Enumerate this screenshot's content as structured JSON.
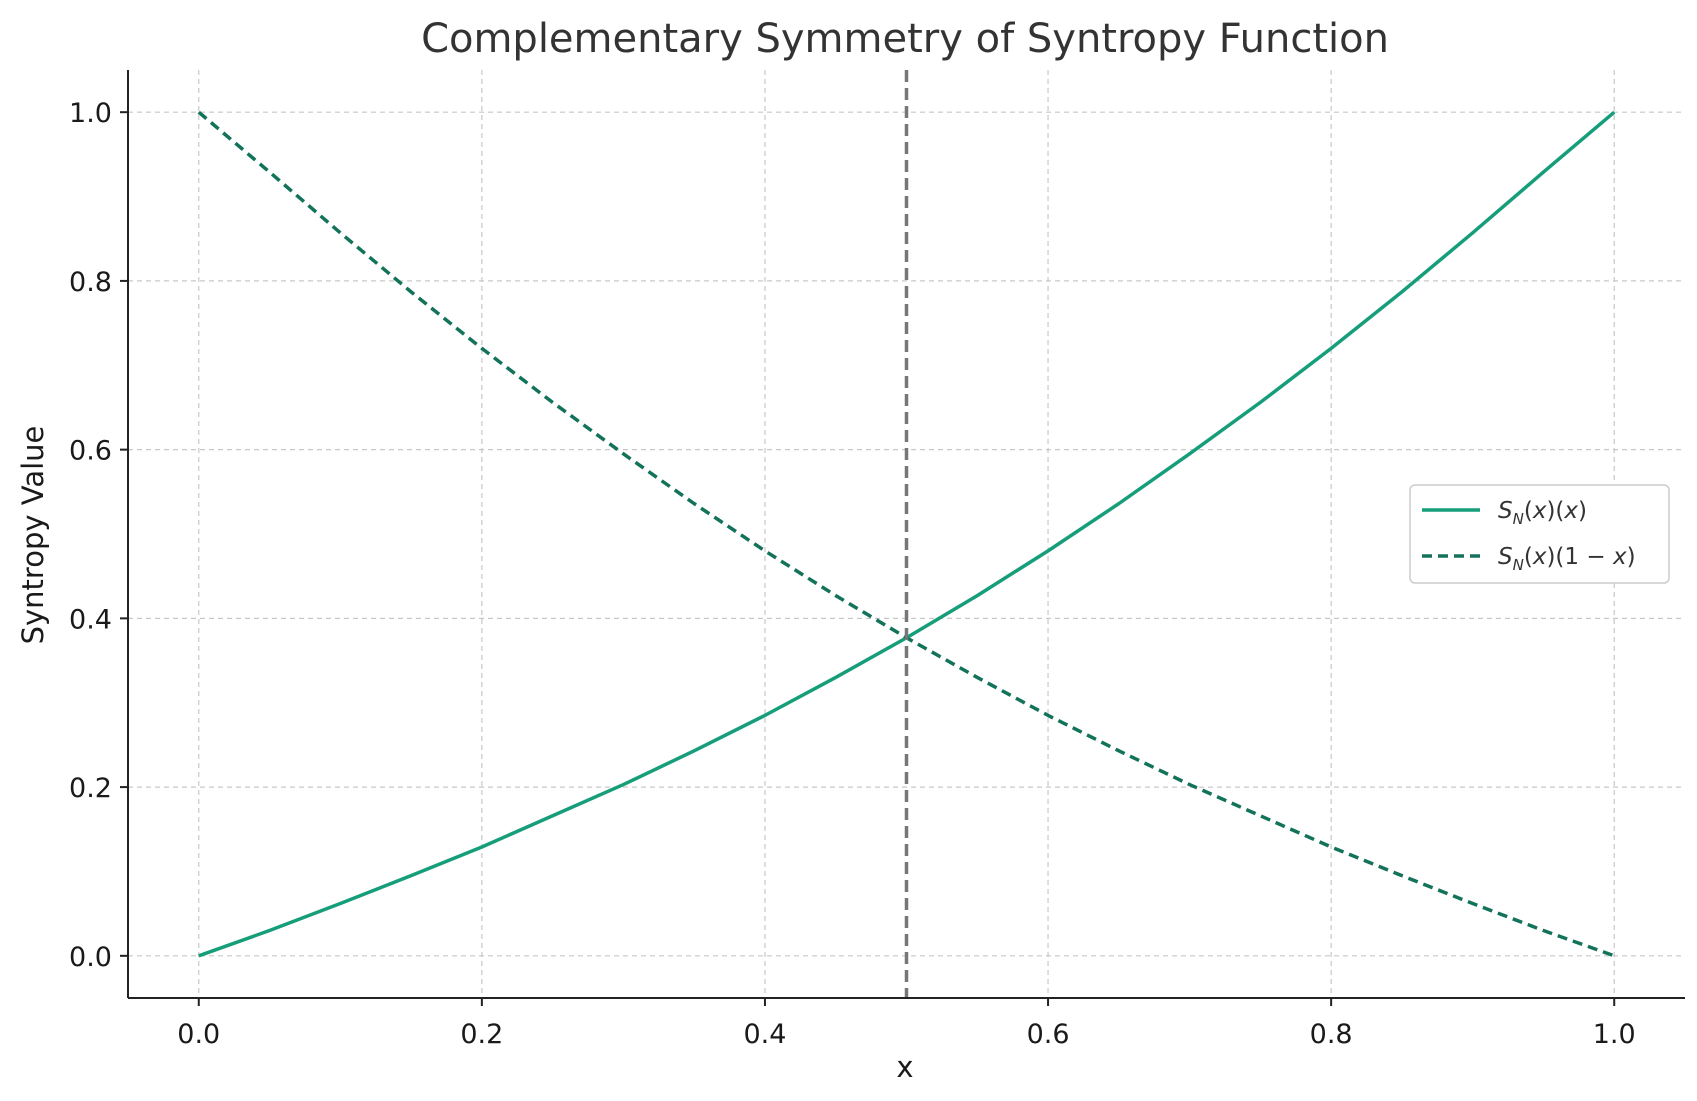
{
  "chart_data": {
    "type": "line",
    "title": "Complementary Symmetry of Syntropy Function",
    "xlabel": "x",
    "ylabel": "Syntropy Value",
    "xlim": [
      -0.05,
      1.05
    ],
    "ylim": [
      -0.05,
      1.05
    ],
    "x_ticks": [
      0.0,
      0.2,
      0.4,
      0.6,
      0.8,
      1.0
    ],
    "x_tick_labels": [
      "0.0",
      "0.2",
      "0.4",
      "0.6",
      "0.8",
      "1.0"
    ],
    "y_ticks": [
      0.0,
      0.2,
      0.4,
      0.6,
      0.8,
      1.0
    ],
    "y_tick_labels": [
      "0.0",
      "0.2",
      "0.4",
      "0.6",
      "0.8",
      "1.0"
    ],
    "grid": true,
    "legend_position": "center-right",
    "vline": {
      "x": 0.5,
      "color": "#777777",
      "style": "dashed"
    },
    "series": [
      {
        "name": "S_N(x)(x)",
        "style": "solid",
        "color": "#169e7a",
        "x": [
          0.0,
          0.05,
          0.1,
          0.15,
          0.2,
          0.25,
          0.3,
          0.35,
          0.4,
          0.45,
          0.5,
          0.55,
          0.6,
          0.65,
          0.7,
          0.75,
          0.8,
          0.85,
          0.9,
          0.95,
          1.0
        ],
        "y": [
          0.0,
          0.03,
          0.062,
          0.095,
          0.129,
          0.166,
          0.203,
          0.243,
          0.285,
          0.33,
          0.377,
          0.427,
          0.48,
          0.536,
          0.595,
          0.656,
          0.72,
          0.787,
          0.857,
          0.929,
          1.0
        ]
      },
      {
        "name": "S_N(x)(1-x)",
        "style": "dashed",
        "color": "#13735a",
        "x": [
          0.0,
          0.05,
          0.1,
          0.15,
          0.2,
          0.25,
          0.3,
          0.35,
          0.4,
          0.45,
          0.5,
          0.55,
          0.6,
          0.65,
          0.7,
          0.75,
          0.8,
          0.85,
          0.9,
          0.95,
          1.0
        ],
        "y": [
          1.0,
          0.929,
          0.857,
          0.787,
          0.72,
          0.656,
          0.595,
          0.536,
          0.48,
          0.427,
          0.377,
          0.33,
          0.285,
          0.243,
          0.203,
          0.166,
          0.129,
          0.095,
          0.062,
          0.03,
          0.0
        ]
      }
    ]
  }
}
